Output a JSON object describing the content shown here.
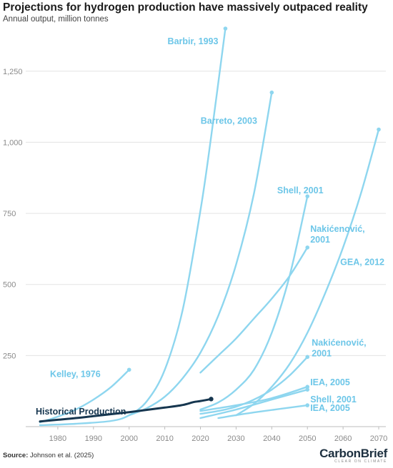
{
  "header": {
    "title": "Projections for hydrogen production have massively outpaced reality",
    "subtitle": "Annual output, million tonnes"
  },
  "footer": {
    "source_label": "Source:",
    "source_text": "Johnson et al. (2025)",
    "brand_name": "CarbonBrief",
    "brand_tagline": "CLEAR ON CLIMATE"
  },
  "colors": {
    "projection": "#8ed6ef",
    "projection_label": "#6cc6e8",
    "historical": "#16364f",
    "grid": "#e3e3e3",
    "axis_text": "#8a8a8a"
  },
  "chart_data": {
    "type": "line",
    "title": "Projections for hydrogen production have massively outpaced reality",
    "subtitle": "Annual output, million tonnes",
    "xlabel": "",
    "ylabel": "",
    "xlim": [
      1971,
      2072
    ],
    "ylim": [
      0,
      1400
    ],
    "x_ticks": [
      1980,
      1990,
      2000,
      2010,
      2020,
      2030,
      2040,
      2050,
      2060,
      2070
    ],
    "y_ticks": [
      250,
      500,
      750,
      1000,
      1250
    ],
    "y_tick_labels": [
      "250",
      "500",
      "750",
      "1,000",
      "1,250"
    ],
    "grid": true,
    "series": [
      {
        "name": "Historical Production",
        "kind": "historical",
        "x": [
          1975,
          1980,
          1985,
          1990,
          1995,
          2000,
          2005,
          2010,
          2015,
          2018,
          2020,
          2023
        ],
        "values": [
          18,
          24,
          30,
          37,
          44,
          51,
          59,
          67,
          76,
          86,
          90,
          97
        ]
      },
      {
        "name": "Kelley, 1976",
        "kind": "projection",
        "x": [
          1975,
          1980,
          1985,
          1990,
          1995,
          2000
        ],
        "values": [
          15,
          35,
          60,
          95,
          140,
          200
        ]
      },
      {
        "name": "Barbir, 1993",
        "kind": "projection",
        "x": [
          1975,
          1985,
          1995,
          2000,
          2005,
          2010,
          2015,
          2020,
          2023,
          2027
        ],
        "values": [
          5,
          10,
          20,
          40,
          90,
          200,
          410,
          760,
          1020,
          1400
        ]
      },
      {
        "name": "Barreto, 2003",
        "kind": "projection",
        "x": [
          2000,
          2005,
          2010,
          2015,
          2020,
          2025,
          2030,
          2035,
          2040
        ],
        "values": [
          40,
          65,
          105,
          170,
          260,
          390,
          570,
          820,
          1175
        ]
      },
      {
        "name": "Shell, 2001",
        "kind": "projection",
        "x": [
          2020,
          2025,
          2030,
          2035,
          2040,
          2045,
          2050
        ],
        "values": [
          60,
          85,
          130,
          200,
          330,
          530,
          810
        ]
      },
      {
        "name": "Nakićenović, 2001",
        "kind": "projection",
        "x": [
          2020,
          2025,
          2030,
          2035,
          2040,
          2045,
          2050
        ],
        "values": [
          190,
          250,
          310,
          380,
          450,
          530,
          630
        ]
      },
      {
        "name": "GEA, 2012",
        "kind": "projection",
        "x": [
          2030,
          2035,
          2040,
          2045,
          2050,
          2055,
          2060,
          2065,
          2070
        ],
        "values": [
          40,
          80,
          140,
          220,
          330,
          470,
          630,
          820,
          1045
        ]
      },
      {
        "name": "Nakićenović, 2001",
        "kind": "projection",
        "x": [
          2020,
          2025,
          2030,
          2035,
          2040,
          2045,
          2050
        ],
        "values": [
          45,
          55,
          70,
          95,
          130,
          180,
          245
        ]
      },
      {
        "name": "IEA, 2005",
        "kind": "projection",
        "x": [
          2020,
          2030,
          2040,
          2050
        ],
        "values": [
          55,
          75,
          100,
          140
        ]
      },
      {
        "name": "Shell, 2001",
        "kind": "projection",
        "x": [
          2020,
          2030,
          2040,
          2050
        ],
        "values": [
          30,
          60,
          95,
          130
        ]
      },
      {
        "name": "IEA, 2005",
        "kind": "projection",
        "x": [
          2025,
          2035,
          2050
        ],
        "values": [
          30,
          50,
          75
        ]
      }
    ]
  }
}
